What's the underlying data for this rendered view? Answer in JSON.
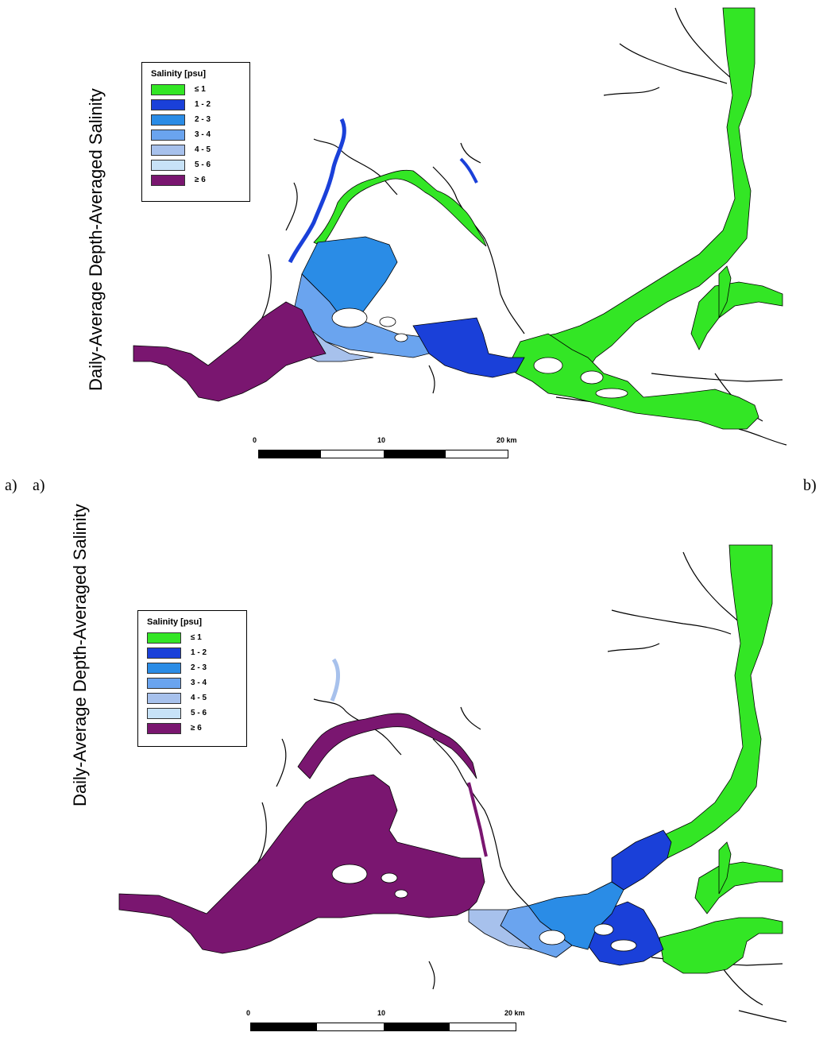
{
  "panel_a": {
    "ylabel": "Daily-Average Depth-Averaged Salinity",
    "legend_title": "Salinity [psu]",
    "legend": [
      {
        "label": "≤ 1",
        "color": "#33e625"
      },
      {
        "label": "1 - 2",
        "color": "#1a40d9"
      },
      {
        "label": "2 - 3",
        "color": "#2a8ce6"
      },
      {
        "label": "3 - 4",
        "color": "#6aa4ef"
      },
      {
        "label": "4 - 5",
        "color": "#a7c1ec"
      },
      {
        "label": "5 - 6",
        "color": "#c7e2f7"
      },
      {
        "label": "≥ 6",
        "color": "#7a1670"
      }
    ],
    "scale": {
      "zero": "0",
      "ten": "10",
      "twenty": "20 km"
    }
  },
  "panel_b": {
    "ylabel": "Daily-Average Depth-Averaged Salinity",
    "legend_title": "Salinity [psu]",
    "legend": [
      {
        "label": "≤ 1",
        "color": "#33e625"
      },
      {
        "label": "1 - 2",
        "color": "#1a40d9"
      },
      {
        "label": "2 - 3",
        "color": "#2a8ce6"
      },
      {
        "label": "3 - 4",
        "color": "#6aa4ef"
      },
      {
        "label": "4 - 5",
        "color": "#a7c1ec"
      },
      {
        "label": "5 - 6",
        "color": "#c7e2f7"
      },
      {
        "label": "≥ 6",
        "color": "#7a1670"
      }
    ],
    "scale": {
      "zero": "0",
      "ten": "10",
      "twenty": "20 km"
    }
  },
  "captions": {
    "a1": "a)",
    "a2": "a)",
    "b": "b)"
  }
}
